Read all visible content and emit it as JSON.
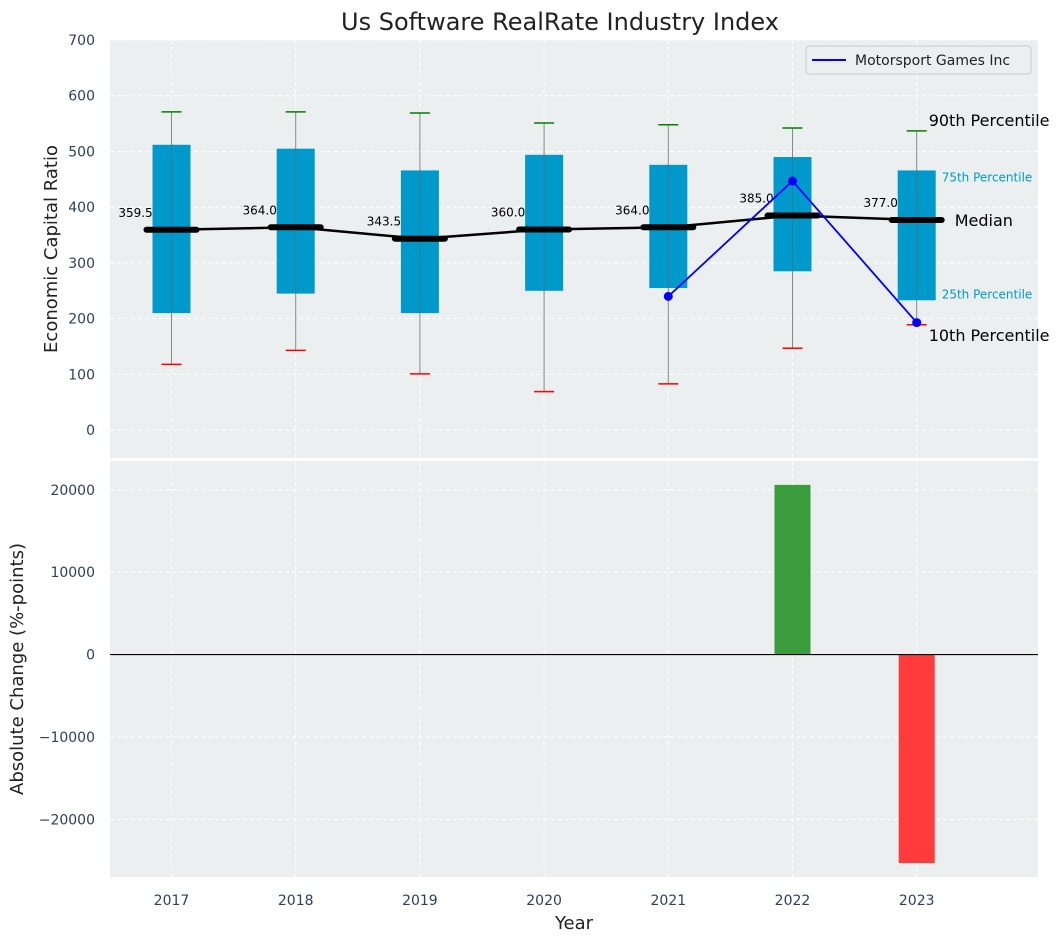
{
  "chart_data": [
    {
      "type": "box",
      "title": "Us Software RealRate Industry Index",
      "ylabel": "Economic Capital Ratio",
      "ylim": [
        -50,
        700
      ],
      "yticks": [
        0,
        100,
        200,
        300,
        400,
        500,
        600,
        700
      ],
      "categories": [
        "2017",
        "2018",
        "2019",
        "2020",
        "2021",
        "2022",
        "2023"
      ],
      "p10": [
        118,
        143,
        101,
        69,
        83,
        147,
        189
      ],
      "p25": [
        210,
        245,
        210,
        250,
        255,
        285,
        233
      ],
      "median": [
        359.5,
        364.0,
        343.5,
        360.0,
        364.0,
        385.0,
        377.0
      ],
      "median_labels": [
        "359.5",
        "364.0",
        "343.5",
        "360.0",
        "364.0",
        "385.0",
        "377.0"
      ],
      "p75": [
        512,
        505,
        466,
        494,
        476,
        490,
        466
      ],
      "p90": [
        571,
        571,
        569,
        551,
        548,
        542,
        537
      ],
      "company_series": {
        "name": "Motorsport Games Inc",
        "x": [
          "2021",
          "2022",
          "2023"
        ],
        "values": [
          240,
          447,
          193
        ]
      },
      "annotations": {
        "p90": "90th Percentile",
        "p75": "75th Percentile",
        "median": "Median",
        "p25": "25th Percentile",
        "p10": "10th Percentile"
      },
      "grid": true,
      "legend_position": "top-right",
      "colors": {
        "box": "#0099cc",
        "median_line": "#000000",
        "company_line": "#0000ff",
        "p90_cap": "#008000",
        "p10_cap": "#ff0000",
        "background": "#ebeff0"
      }
    },
    {
      "type": "bar",
      "xlabel": "Year",
      "ylabel": "Absolute Change (%-points)",
      "ylim": [
        -27000,
        23500
      ],
      "yticks": [
        -20000,
        -10000,
        0,
        10000,
        20000
      ],
      "ytick_labels": [
        "−20000",
        "−10000",
        "0",
        "10000",
        "20000"
      ],
      "categories": [
        "2017",
        "2018",
        "2019",
        "2020",
        "2021",
        "2022",
        "2023"
      ],
      "values": [
        0,
        0,
        0,
        0,
        0,
        20600,
        -25300
      ],
      "grid": true,
      "colors": {
        "positive": "#3a9c3a",
        "negative": "#ff3b3b"
      }
    }
  ]
}
